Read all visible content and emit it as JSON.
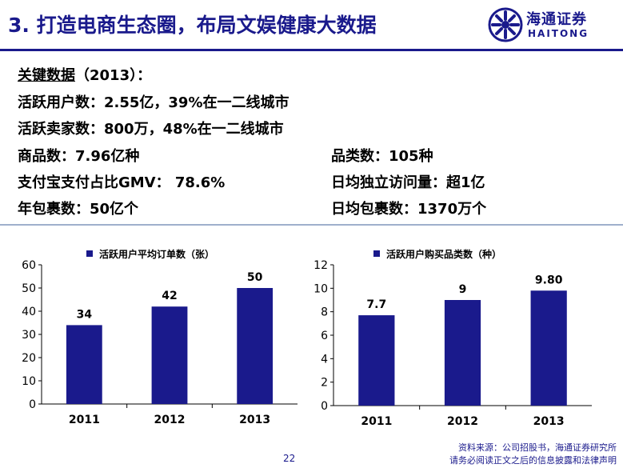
{
  "title": "3. 打造电商生态圈，布局文娱健康大数据",
  "logo": {
    "cn": "海通证券",
    "en": "HAITONG",
    "icon": "haitong-logo-icon"
  },
  "key_data": {
    "heading_underlined": "关键数据",
    "heading_rest": "（2013）：",
    "rows_full": [
      "活跃用户数：2.55亿，39%在一二线城市",
      "活跃卖家数：800万，48%在一二线城市"
    ],
    "rows_left": [
      "商品数：7.96亿种",
      "支付宝支付占比GMV： 78.6%",
      "年包裹数：50亿个"
    ],
    "rows_right": [
      "品类数：105种",
      "日均独立访问量：超1亿",
      "日均包裹数：1370万个"
    ]
  },
  "chart_data": [
    {
      "type": "bar",
      "legend": "活跃用户平均订单数（张）",
      "categories": [
        "2011",
        "2012",
        "2013"
      ],
      "values": [
        34,
        42,
        50
      ],
      "value_labels": [
        "34",
        "42",
        "50"
      ],
      "ylim": [
        0,
        60
      ],
      "yticks": [
        "0",
        "10",
        "20",
        "30",
        "40",
        "50",
        "60"
      ],
      "color": "#1a1a8c",
      "grid": false,
      "legend_position": "top"
    },
    {
      "type": "bar",
      "legend": "活跃用户购买品类数（种）",
      "categories": [
        "2011",
        "2012",
        "2013"
      ],
      "values": [
        7.7,
        9,
        9.8
      ],
      "value_labels": [
        "7.7",
        "9",
        "9.80"
      ],
      "ylim": [
        0,
        12
      ],
      "yticks": [
        "0",
        "2",
        "4",
        "6",
        "8",
        "10",
        "12"
      ],
      "color": "#1a1a8c",
      "grid": false,
      "legend_position": "top"
    }
  ],
  "page_number": "22",
  "source_line1": "资料来源：公司招股书，海通证券研究所",
  "source_line2": "请务必阅读正文之后的信息披露和法律声明",
  "colors": {
    "title": "#1a1a8c",
    "bar": "#1a1a8c",
    "rule": "#1a1a8c"
  }
}
